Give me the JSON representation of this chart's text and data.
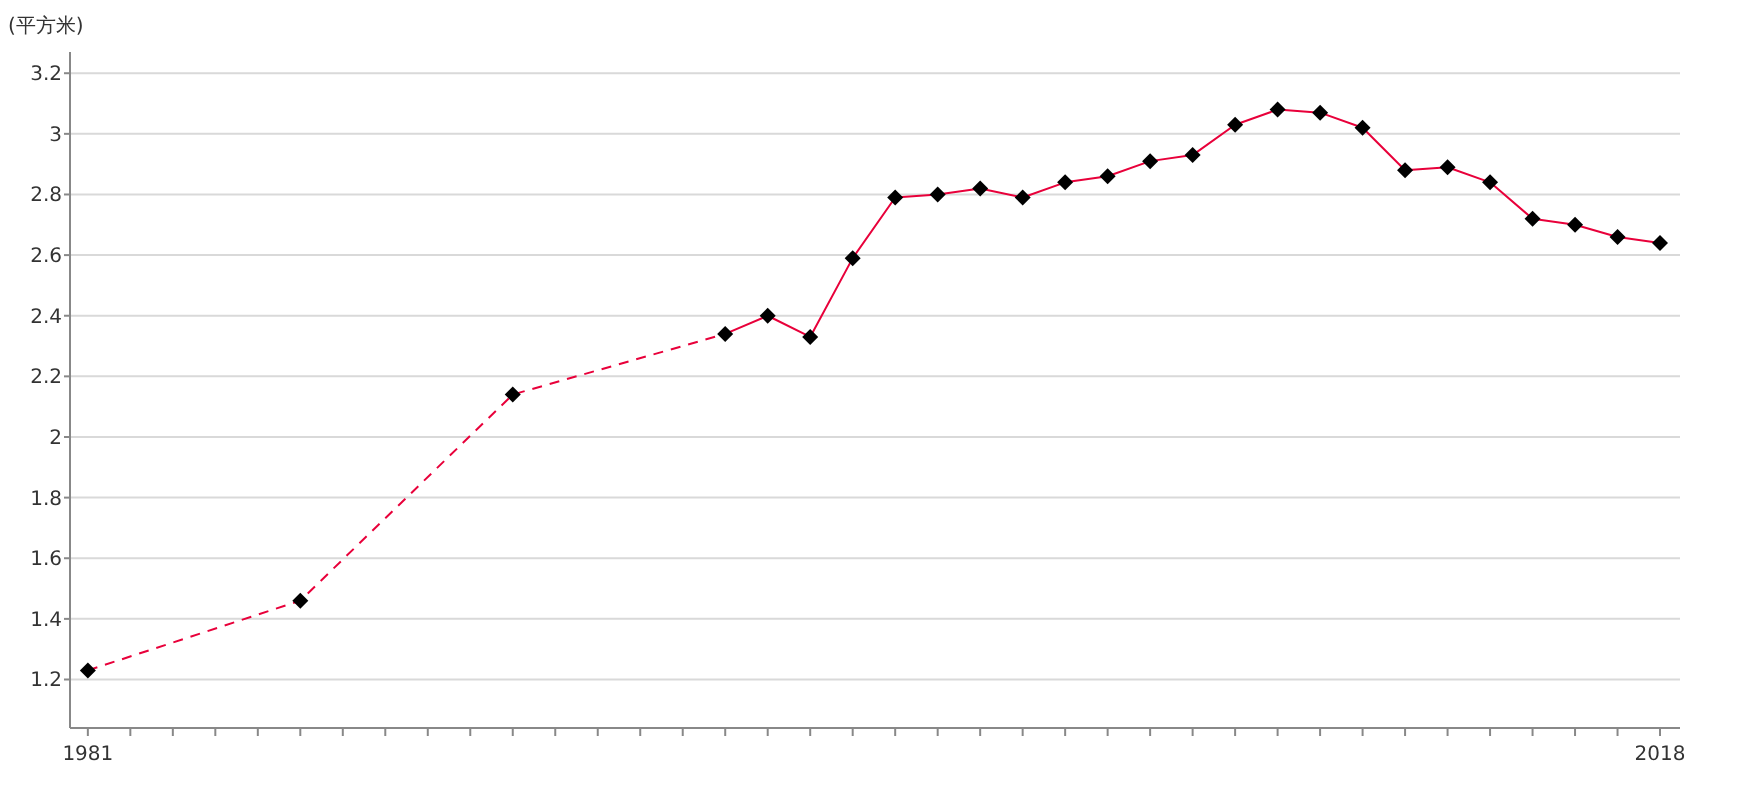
{
  "chart_data": {
    "type": "line",
    "ylabel": "(平方米)",
    "grid": "y",
    "marker": "diamond",
    "xlim": [
      1980.58,
      2018.47
    ],
    "ylim": [
      1.04,
      3.27
    ],
    "yticks": [
      1.2,
      1.4,
      1.6,
      1.8,
      2,
      2.2,
      2.4,
      2.6,
      2.8,
      3,
      3.2
    ],
    "xticks": [
      1981,
      {
        "value": 1982,
        "label": null
      },
      {
        "value": 1983,
        "label": null
      },
      {
        "value": 1984,
        "label": null
      },
      {
        "value": 1985,
        "label": null
      },
      {
        "value": 1986,
        "label": null
      },
      {
        "value": 1987,
        "label": null
      },
      {
        "value": 1988,
        "label": null
      },
      {
        "value": 1989,
        "label": null
      },
      {
        "value": 1990,
        "label": null
      },
      {
        "value": 1991,
        "label": null
      },
      {
        "value": 1992,
        "label": null
      },
      {
        "value": 1993,
        "label": null
      },
      {
        "value": 1994,
        "label": null
      },
      {
        "value": 1995,
        "label": null
      },
      {
        "value": 1996,
        "label": null
      },
      {
        "value": 1997,
        "label": null
      },
      {
        "value": 1998,
        "label": null
      },
      {
        "value": 1999,
        "label": null
      },
      {
        "value": 2000,
        "label": null
      },
      {
        "value": 2001,
        "label": null
      },
      {
        "value": 2002,
        "label": null
      },
      {
        "value": 2003,
        "label": null
      },
      {
        "value": 2004,
        "label": null
      },
      {
        "value": 2005,
        "label": null
      },
      {
        "value": 2006,
        "label": null
      },
      {
        "value": 2007,
        "label": null
      },
      {
        "value": 2008,
        "label": null
      },
      {
        "value": 2009,
        "label": null
      },
      {
        "value": 2010,
        "label": null
      },
      {
        "value": 2011,
        "label": null
      },
      {
        "value": 2012,
        "label": null
      },
      {
        "value": 2013,
        "label": null
      },
      {
        "value": 2014,
        "label": null
      },
      {
        "value": 2015,
        "label": null
      },
      {
        "value": 2016,
        "label": null
      },
      {
        "value": 2017,
        "label": null
      },
      2018
    ],
    "series": [
      {
        "color": "#e8003a",
        "line_style": [
          "dashed",
          "dashed",
          "dashed",
          "solid",
          "solid",
          "solid",
          "solid",
          "solid",
          "solid",
          "solid",
          "solid",
          "solid",
          "solid",
          "solid",
          "solid",
          "solid",
          "solid",
          "solid",
          "solid",
          "solid",
          "solid",
          "solid",
          "solid",
          "solid",
          "solid"
        ],
        "x": [
          1981,
          1986,
          1991,
          1996,
          1997,
          1998,
          1999,
          2000,
          2001,
          2002,
          2003,
          2004,
          2005,
          2006,
          2007,
          2008,
          2009,
          2010,
          2011,
          2012,
          2013,
          2014,
          2015,
          2016,
          2017,
          2018
        ],
        "values": [
          1.23,
          1.46,
          2.14,
          2.34,
          2.4,
          2.33,
          2.59,
          2.79,
          2.8,
          2.82,
          2.79,
          2.84,
          2.86,
          2.91,
          2.93,
          3.03,
          3.08,
          3.07,
          3.02,
          2.88,
          2.89,
          2.84,
          2.72,
          2.7,
          2.66,
          2.64
        ]
      }
    ]
  }
}
